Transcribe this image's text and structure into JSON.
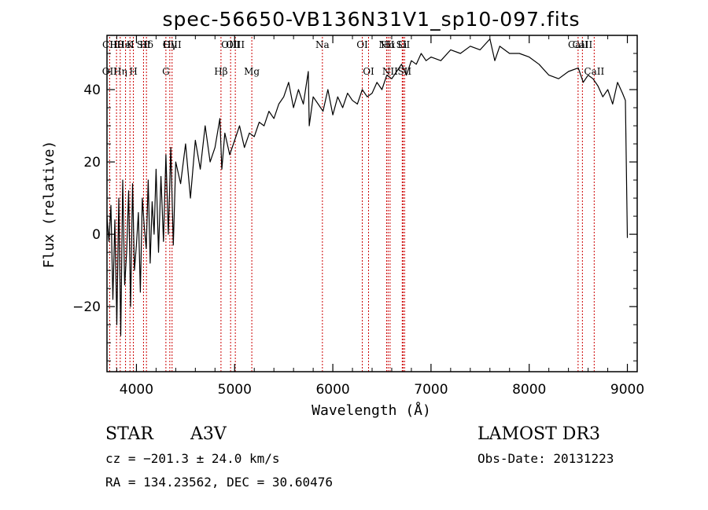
{
  "chart_data": {
    "type": "line",
    "title": "spec-56650-VB136N31V1_sp10-097.fits",
    "xlabel": "Wavelength (Å)",
    "ylabel": "Flux (relative)",
    "xlim": [
      3700,
      9100
    ],
    "ylim": [
      -38,
      55
    ],
    "x_ticks": [
      4000,
      5000,
      6000,
      7000,
      8000,
      9000
    ],
    "y_ticks": [
      -20,
      0,
      20,
      40
    ],
    "grid": false,
    "colors": {
      "spectrum": "#000000",
      "lines": "#cc0000",
      "axes": "#000000"
    },
    "series": [
      {
        "name": "spectrum",
        "x": [
          3700,
          3720,
          3740,
          3760,
          3780,
          3800,
          3820,
          3840,
          3860,
          3880,
          3900,
          3920,
          3940,
          3960,
          3980,
          4000,
          4020,
          4040,
          4060,
          4080,
          4100,
          4120,
          4140,
          4160,
          4180,
          4200,
          4225,
          4250,
          4275,
          4300,
          4325,
          4350,
          4375,
          4400,
          4450,
          4500,
          4550,
          4600,
          4650,
          4700,
          4750,
          4800,
          4850,
          4870,
          4900,
          4950,
          5000,
          5050,
          5100,
          5150,
          5200,
          5250,
          5300,
          5350,
          5400,
          5450,
          5500,
          5550,
          5600,
          5650,
          5700,
          5750,
          5760,
          5800,
          5850,
          5900,
          5950,
          6000,
          6050,
          6100,
          6150,
          6200,
          6250,
          6300,
          6350,
          6400,
          6450,
          6500,
          6550,
          6600,
          6650,
          6700,
          6750,
          6800,
          6850,
          6900,
          6950,
          7000,
          7100,
          7200,
          7300,
          7400,
          7500,
          7600,
          7650,
          7700,
          7800,
          7900,
          8000,
          8100,
          8200,
          8300,
          8400,
          8500,
          8550,
          8600,
          8650,
          8700,
          8750,
          8800,
          8850,
          8900,
          8950,
          8980,
          9000
        ],
        "values": [
          5,
          -2,
          8,
          -18,
          4,
          -25,
          10,
          -28,
          15,
          -14,
          -5,
          12,
          -20,
          14,
          -10,
          -3,
          6,
          -16,
          10,
          2,
          -4,
          15,
          -8,
          9,
          0,
          18,
          -5,
          16,
          -2,
          22,
          0,
          24,
          -3,
          20,
          14,
          25,
          10,
          26,
          18,
          30,
          20,
          24,
          32,
          18,
          28,
          22,
          26,
          30,
          24,
          28,
          27,
          31,
          30,
          34,
          32,
          36,
          38,
          42,
          35,
          40,
          36,
          45,
          30,
          38,
          36,
          34,
          40,
          33,
          38,
          35,
          39,
          37,
          36,
          40,
          38,
          39,
          42,
          40,
          44,
          43,
          45,
          47,
          44,
          48,
          47,
          50,
          48,
          49,
          48,
          51,
          50,
          52,
          51,
          54,
          48,
          52,
          50,
          50,
          49,
          47,
          44,
          43,
          45,
          46,
          42,
          44,
          43,
          41,
          38,
          40,
          36,
          42,
          39,
          37,
          -1
        ]
      }
    ],
    "lines": [
      {
        "x": 3727,
        "top": "CII",
        "bot": "OII"
      },
      {
        "x": 3797,
        "top": "Hθ",
        "bot": ""
      },
      {
        "x": 3835,
        "top": "",
        "bot": "Hη"
      },
      {
        "x": 3889,
        "top": "HeI",
        "bot": ""
      },
      {
        "x": 3934,
        "top": "K",
        "bot": ""
      },
      {
        "x": 3969,
        "top": "",
        "bot": "H"
      },
      {
        "x": 4072,
        "top": "SII",
        "bot": ""
      },
      {
        "x": 4102,
        "top": "Hδ",
        "bot": ""
      },
      {
        "x": 4300,
        "top": "",
        "bot": "G"
      },
      {
        "x": 4340,
        "top": "Hγ",
        "bot": ""
      },
      {
        "x": 4363,
        "top": "OIII",
        "bot": ""
      },
      {
        "x": 4861,
        "top": "",
        "bot": "Hβ"
      },
      {
        "x": 4959,
        "top": "OIII",
        "bot": ""
      },
      {
        "x": 5007,
        "top": "OIII",
        "bot": ""
      },
      {
        "x": 5175,
        "top": "",
        "bot": "Mg"
      },
      {
        "x": 5894,
        "top": "Na",
        "bot": ""
      },
      {
        "x": 6300,
        "top": "OI",
        "bot": ""
      },
      {
        "x": 6364,
        "top": "",
        "bot": "OI"
      },
      {
        "x": 6548,
        "top": "NII",
        "bot": ""
      },
      {
        "x": 6563,
        "top": "Hα",
        "bot": ""
      },
      {
        "x": 6583,
        "top": "",
        "bot": "NII"
      },
      {
        "x": 6707,
        "top": "Li",
        "bot": ""
      },
      {
        "x": 6716,
        "top": "SII",
        "bot": ""
      },
      {
        "x": 6731,
        "top": "",
        "bot": "SII"
      },
      {
        "x": 8498,
        "top": "CaII",
        "bot": ""
      },
      {
        "x": 8542,
        "top": "CaII",
        "bot": ""
      },
      {
        "x": 8662,
        "top": "",
        "bot": "CaII"
      }
    ]
  },
  "info": {
    "object_class": "STAR",
    "subclass": "A3V",
    "survey": "LAMOST DR3",
    "cz": "cz = −201.3 ± 24.0 km/s",
    "obs_date": "Obs-Date: 20131223",
    "coords": "RA = 134.23562, DEC =  30.60476"
  }
}
